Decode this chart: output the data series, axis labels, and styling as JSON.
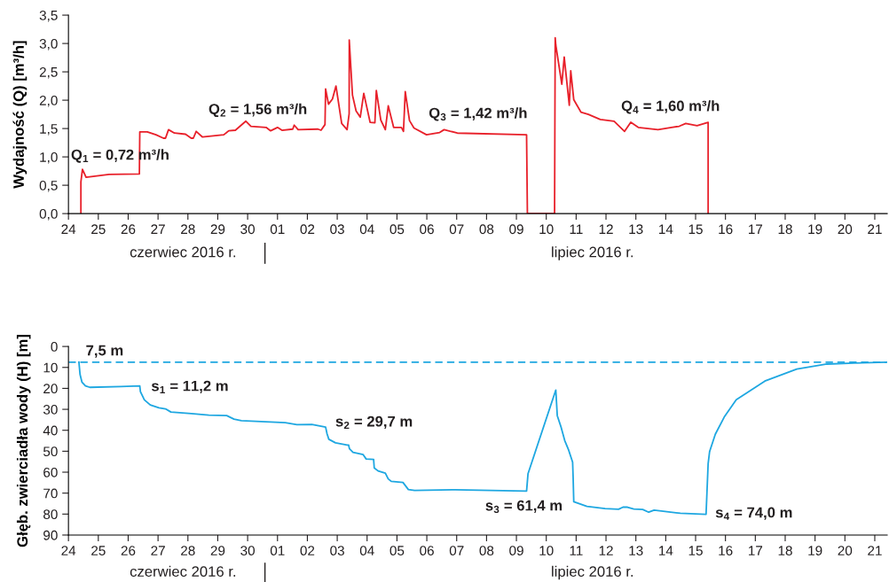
{
  "chart_data": [
    {
      "type": "line",
      "ylabel": "Wydajność (Q) [m³/h]",
      "xlim": [
        "2016-06-24",
        "2016-07-21T10:00"
      ],
      "xticks": [
        {
          "value": "2016-06-24",
          "label": "24"
        },
        {
          "value": "2016-06-25",
          "label": "25"
        },
        {
          "value": "2016-06-26",
          "label": "26"
        },
        {
          "value": "2016-06-27",
          "label": "27"
        },
        {
          "value": "2016-06-28",
          "label": "28"
        },
        {
          "value": "2016-06-29",
          "label": "29"
        },
        {
          "value": "2016-06-30",
          "label": "30"
        },
        {
          "value": "2016-07-01",
          "label": "01"
        },
        {
          "value": "2016-07-02",
          "label": "02"
        },
        {
          "value": "2016-07-03",
          "label": "03"
        },
        {
          "value": "2016-07-04",
          "label": "04"
        },
        {
          "value": "2016-07-05",
          "label": "05"
        },
        {
          "value": "2016-07-06",
          "label": "06"
        },
        {
          "value": "2016-07-07",
          "label": "07"
        },
        {
          "value": "2016-07-08",
          "label": "08"
        },
        {
          "value": "2016-07-09",
          "label": "09"
        },
        {
          "value": "2016-07-10",
          "label": "10"
        },
        {
          "value": "2016-07-11",
          "label": "11"
        },
        {
          "value": "2016-07-12",
          "label": "12"
        },
        {
          "value": "2016-07-13",
          "label": "13"
        },
        {
          "value": "2016-07-14",
          "label": "14"
        },
        {
          "value": "2016-07-15",
          "label": "15"
        },
        {
          "value": "2016-07-16",
          "label": "16"
        },
        {
          "value": "2016-07-17",
          "label": "17"
        },
        {
          "value": "2016-07-18",
          "label": "18"
        },
        {
          "value": "2016-07-19",
          "label": "19"
        },
        {
          "value": "2016-07-20",
          "label": "20"
        },
        {
          "value": "2016-07-21",
          "label": "21"
        }
      ],
      "ylim": [
        0,
        3.5
      ],
      "yticks": [
        {
          "value": 0,
          "label": "0,0"
        },
        {
          "value": 0.5,
          "label": "0,5"
        },
        {
          "value": 1,
          "label": "1,0"
        },
        {
          "value": 1.5,
          "label": "1,5"
        },
        {
          "value": 2,
          "label": "2,0"
        },
        {
          "value": 2.5,
          "label": "2,5"
        },
        {
          "value": 3,
          "label": "3,0"
        },
        {
          "value": 3.5,
          "label": "3,5"
        }
      ],
      "series": [
        {
          "color": "#e8202a",
          "x": [
            "2016-06-24T10:00",
            "2016-06-24T10:00",
            "2016-06-24T11:15",
            "2016-06-24T14:10",
            "2016-06-25T08:40",
            "2016-06-26T09:00",
            "2016-06-26T09:20",
            "2016-06-26T15:20",
            "2016-06-26T22:20",
            "2016-06-27T04:20",
            "2016-06-27T06:00",
            "2016-06-27T08:25",
            "2016-06-27T13:10",
            "2016-06-27T22:05",
            "2016-06-28T02:40",
            "2016-06-28T04:20",
            "2016-06-28T06:40",
            "2016-06-28T11:45",
            "2016-06-29T04:50",
            "2016-06-29T08:50",
            "2016-06-29T14:10",
            "2016-06-29T22:35",
            "2016-06-30T02:40",
            "2016-06-30T14:50",
            "2016-06-30T18:30",
            "2016-07-01T00:00",
            "2016-07-01T03:35",
            "2016-07-01T12:15",
            "2016-07-01T13:25",
            "2016-07-01T16:35",
            "2016-07-02T08:25",
            "2016-07-02T11:00",
            "2016-07-02T14:10",
            "2016-07-02T14:40",
            "2016-07-02T17:00",
            "2016-07-02T20:10",
            "2016-07-02T23:00",
            "2016-07-03T03:35",
            "2016-07-03T07:55",
            "2016-07-03T09:35",
            "2016-07-03T09:40",
            "2016-07-03T12:15",
            "2016-07-03T15:10",
            "2016-07-03T18:30",
            "2016-07-03T21:20",
            "2016-07-04T02:25",
            "2016-07-04T06:15",
            "2016-07-04T07:25",
            "2016-07-04T11:00",
            "2016-07-04T14:40",
            "2016-07-04T17:00",
            "2016-07-04T21:20",
            "2016-07-05T03:35",
            "2016-07-05T05:15",
            "2016-07-05T06:40",
            "2016-07-05T10:05",
            "2016-07-05T13:40",
            "2016-07-05T23:45",
            "2016-07-06T10:20",
            "2016-07-06T13:55",
            "2016-07-07T00:30",
            "2016-07-09T08:10",
            "2016-07-09T08:50",
            "2016-07-10T06:40",
            "2016-07-10T07:10",
            "2016-07-10T07:40",
            "2016-07-10T12:30",
            "2016-07-10T14:25",
            "2016-07-10T18:30",
            "2016-07-10T19:40",
            "2016-07-10T22:05",
            "2016-07-11T03:50",
            "2016-07-11T09:50",
            "2016-07-11T19:25",
            "2016-07-12T06:30",
            "2016-07-12T14:55",
            "2016-07-12T19:55",
            "2016-07-13T01:55",
            "2016-07-13T17:45",
            "2016-07-14T04:35",
            "2016-07-14T10:50",
            "2016-07-14T16:05",
            "2016-07-15T01:10",
            "2016-07-15T10:05",
            "2016-07-15T10:05"
          ],
          "values": [
            0,
            0.56,
            0.78,
            0.64,
            0.69,
            0.7,
            1.44,
            1.44,
            1.39,
            1.33,
            1.33,
            1.48,
            1.42,
            1.4,
            1.33,
            1.33,
            1.45,
            1.35,
            1.39,
            1.46,
            1.47,
            1.63,
            1.54,
            1.52,
            1.46,
            1.52,
            1.47,
            1.49,
            1.56,
            1.48,
            1.49,
            1.47,
            1.57,
            2.2,
            1.93,
            2.02,
            2.25,
            1.59,
            1.48,
            1.76,
            3.06,
            2.09,
            1.81,
            1.7,
            2.12,
            1.61,
            1.6,
            2.17,
            1.65,
            1.48,
            1.9,
            1.52,
            1.52,
            1.45,
            2.15,
            1.64,
            1.51,
            1.39,
            1.43,
            1.48,
            1.42,
            1.39,
            0,
            0,
            3.1,
            2.97,
            2.28,
            2.76,
            1.91,
            2.52,
            2.01,
            1.79,
            1.75,
            1.66,
            1.63,
            1.45,
            1.61,
            1.52,
            1.48,
            1.52,
            1.54,
            1.59,
            1.55,
            1.61,
            0
          ]
        }
      ],
      "annotations": [
        "Q$_{1}$ = 0,72 m³/h",
        "Q$_{2}$ = 1,56 m³/h",
        "Q$_{3}$ = 1,42 m³/h",
        "Q$_{4}$ = 1,60 m³/h",
        "czerwiec 2016 r.",
        "lipiec 2016 r."
      ]
    },
    {
      "type": "line",
      "ylabel": "Głęb. zwierciadła wody (H) [m]",
      "xlim": [
        "2016-06-24",
        "2016-07-21T10:00"
      ],
      "xticks": [
        {
          "value": "2016-06-24",
          "label": "24"
        },
        {
          "value": "2016-06-25",
          "label": "25"
        },
        {
          "value": "2016-06-26",
          "label": "26"
        },
        {
          "value": "2016-06-27",
          "label": "27"
        },
        {
          "value": "2016-06-28",
          "label": "28"
        },
        {
          "value": "2016-06-29",
          "label": "29"
        },
        {
          "value": "2016-06-30",
          "label": "30"
        },
        {
          "value": "2016-07-01",
          "label": "01"
        },
        {
          "value": "2016-07-02",
          "label": "02"
        },
        {
          "value": "2016-07-03",
          "label": "03"
        },
        {
          "value": "2016-07-04",
          "label": "04"
        },
        {
          "value": "2016-07-05",
          "label": "05"
        },
        {
          "value": "2016-07-06",
          "label": "06"
        },
        {
          "value": "2016-07-07",
          "label": "07"
        },
        {
          "value": "2016-07-08",
          "label": "08"
        },
        {
          "value": "2016-07-09",
          "label": "09"
        },
        {
          "value": "2016-07-10",
          "label": "10"
        },
        {
          "value": "2016-07-11",
          "label": "11"
        },
        {
          "value": "2016-07-12",
          "label": "12"
        },
        {
          "value": "2016-07-13",
          "label": "13"
        },
        {
          "value": "2016-07-14",
          "label": "14"
        },
        {
          "value": "2016-07-15",
          "label": "15"
        },
        {
          "value": "2016-07-16",
          "label": "16"
        },
        {
          "value": "2016-07-17",
          "label": "17"
        },
        {
          "value": "2016-07-18",
          "label": "18"
        },
        {
          "value": "2016-07-19",
          "label": "19"
        },
        {
          "value": "2016-07-20",
          "label": "20"
        },
        {
          "value": "2016-07-21",
          "label": "21"
        }
      ],
      "ylim": [
        90,
        0
      ],
      "yticks": [
        0,
        10,
        20,
        30,
        40,
        50,
        60,
        70,
        80,
        90
      ],
      "ref_lines": [
        {
          "axis": "y",
          "value": 7.5,
          "label": "7,5 m",
          "color": "#1ea7e1",
          "line_style": "dashed"
        }
      ],
      "series": [
        {
          "color": "#1ea7e1",
          "x": [
            "2016-06-24T08:25",
            "2016-06-24T09:20",
            "2016-06-24T10:50",
            "2016-06-24T13:40",
            "2016-06-24T17:15",
            "2016-06-25T18:00",
            "2016-06-26T09:20",
            "2016-06-26T09:50",
            "2016-06-26T13:00",
            "2016-06-26T17:45",
            "2016-06-27T00:45",
            "2016-06-27T06:00",
            "2016-06-27T10:20",
            "2016-06-28T02:40",
            "2016-06-28T16:50",
            "2016-06-29T07:10",
            "2016-06-29T13:00",
            "2016-06-29T19:00",
            "2016-07-01T06:15",
            "2016-07-01T15:35",
            "2016-07-02T03:35",
            "2016-07-02T14:40",
            "2016-07-02T15:50",
            "2016-07-02T17:15",
            "2016-07-02T22:35",
            "2016-07-03T07:55",
            "2016-07-03T09:10",
            "2016-07-03T09:50",
            "2016-07-03T12:40",
            "2016-07-03T20:50",
            "2016-07-03T23:15",
            "2016-07-04T05:15",
            "2016-07-04T05:45",
            "2016-07-04T08:50",
            "2016-07-04T14:40",
            "2016-07-04T17:00",
            "2016-07-04T19:25",
            "2016-07-05T04:50",
            "2016-07-05T09:10",
            "2016-07-05T14:10",
            "2016-07-06T00:00",
            "2016-07-06T23:00",
            "2016-07-09T08:10",
            "2016-07-09T09:20",
            "2016-07-10T07:40",
            "2016-07-10T08:50",
            "2016-07-10T12:00",
            "2016-07-10T14:50",
            "2016-07-10T18:00",
            "2016-07-10T21:10",
            "2016-07-10T21:35",
            "2016-07-10T22:05",
            "2016-07-11T08:40",
            "2016-07-11T23:15",
            "2016-07-12T10:05",
            "2016-07-12T13:40",
            "2016-07-12T17:15",
            "2016-07-12T22:20",
            "2016-07-13T05:30",
            "2016-07-13T10:20",
            "2016-07-13T14:40",
            "2016-07-14T11:45",
            "2016-07-15T08:25",
            "2016-07-15T10:05",
            "2016-07-15T11:15",
            "2016-07-15T15:50",
            "2016-07-15T23:00",
            "2016-07-16T08:40",
            "2016-07-17T07:40",
            "2016-07-18T09:20",
            "2016-07-19T09:35",
            "2016-07-20T07:25",
            "2016-07-21T08:50"
          ],
          "values": [
            7.5,
            13.4,
            17.0,
            18.8,
            19.5,
            19.1,
            18.8,
            21.6,
            25.5,
            27.9,
            29.3,
            29.8,
            31.3,
            32.0,
            32.8,
            33.0,
            34.7,
            35.4,
            36.4,
            37.3,
            37.2,
            38.5,
            41.7,
            44.3,
            46.0,
            47.0,
            47.1,
            48.8,
            50.5,
            51.6,
            53.7,
            53.9,
            58.0,
            59.4,
            60.5,
            63.2,
            64.4,
            64.9,
            68.3,
            68.7,
            68.6,
            68.4,
            69.0,
            60.7,
            20.8,
            33.0,
            38.7,
            44.9,
            49.5,
            55.2,
            62.4,
            74.1,
            76.3,
            77.4,
            77.7,
            76.7,
            76.7,
            77.6,
            77.8,
            79.1,
            78.1,
            79.6,
            80.1,
            55.9,
            50.2,
            41.9,
            33.7,
            25.4,
            16.5,
            10.8,
            8.4,
            7.9,
            7.5
          ]
        }
      ],
      "annotations": [
        "s$_{1}$ = 11,2 m",
        "s$_{2}$ = 29,7 m",
        "s$_{3}$ = 61,4 m",
        "s$_{4}$ = 74,0 m",
        "czerwiec 2016 r.",
        "lipiec 2016 r."
      ]
    }
  ]
}
